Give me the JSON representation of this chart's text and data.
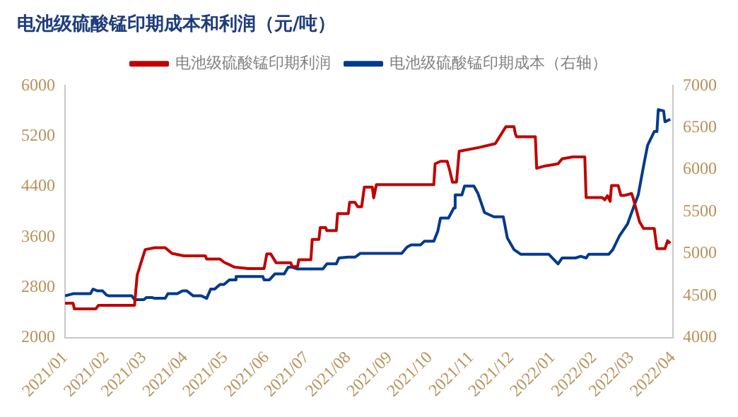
{
  "chart_data": {
    "type": "line",
    "title": "电池级硫酸锰印期成本和利润（元/吨）",
    "legend": "top",
    "grid": false,
    "xlim": [
      "2021-01-01",
      "2022-04-01"
    ],
    "xticks": [
      {
        "value": "2021-01",
        "label": "2021/01"
      },
      {
        "value": "2021-02",
        "label": "2021/02"
      },
      {
        "value": "2021-03",
        "label": "2021/03"
      },
      {
        "value": "2021-04",
        "label": "2021/04"
      },
      {
        "value": "2021-05",
        "label": "2021/05"
      },
      {
        "value": "2021-06",
        "label": "2021/06"
      },
      {
        "value": "2021-07",
        "label": "2021/07"
      },
      {
        "value": "2021-08",
        "label": "2021/08"
      },
      {
        "value": "2021-09",
        "label": "2021/09"
      },
      {
        "value": "2021-10",
        "label": "2021/10"
      },
      {
        "value": "2021-11",
        "label": "2021/11"
      },
      {
        "value": "2021-12",
        "label": "2021/12"
      },
      {
        "value": "2022-01",
        "label": "2022/01"
      },
      {
        "value": "2022-02",
        "label": "2022/02"
      },
      {
        "value": "2022-03",
        "label": "2022/03"
      },
      {
        "value": "2022-04",
        "label": "2022/04"
      }
    ],
    "ylim": [
      2000,
      6000
    ],
    "yticks": [
      2000,
      2800,
      3600,
      4400,
      5200,
      6000
    ],
    "y2lim": [
      4000,
      7000
    ],
    "y2ticks": [
      4000,
      4500,
      5000,
      5500,
      6000,
      6500,
      7000
    ],
    "series": [
      {
        "name": "电池级硫酸锰印期利润",
        "color": "#c00000",
        "x": [
          "2021-01-01",
          "2021-01-07",
          "2021-01-08",
          "2021-01-24",
          "2021-01-26",
          "2021-02-22",
          "2021-02-24",
          "2021-02-27",
          "2021-03-02",
          "2021-03-09",
          "2021-03-17",
          "2021-03-22",
          "2021-03-31",
          "2021-04-16",
          "2021-04-17",
          "2021-04-27",
          "2021-04-30",
          "2021-05-08",
          "2021-05-18",
          "2021-05-30",
          "2021-06-01",
          "2021-06-04",
          "2021-06-08",
          "2021-06-19",
          "2021-06-20",
          "2021-06-24",
          "2021-06-25",
          "2021-07-04",
          "2021-07-05",
          "2021-07-10",
          "2021-07-11",
          "2021-07-15",
          "2021-07-16",
          "2021-07-23",
          "2021-07-24",
          "2021-08-01",
          "2021-08-02",
          "2021-08-06",
          "2021-08-08",
          "2021-08-11",
          "2021-08-13",
          "2021-08-19",
          "2021-08-20",
          "2021-08-22",
          "2021-10-04",
          "2021-10-05",
          "2021-10-09",
          "2021-10-14",
          "2021-10-16",
          "2021-10-18",
          "2021-10-21",
          "2021-10-23",
          "2021-11-07",
          "2021-11-19",
          "2021-11-27",
          "2021-12-03",
          "2021-12-04",
          "2021-12-05",
          "2021-12-19",
          "2021-12-20",
          "2021-12-26",
          "2022-01-05",
          "2022-01-08",
          "2022-01-16",
          "2022-01-25",
          "2022-01-26",
          "2022-02-07",
          "2022-02-09",
          "2022-02-11",
          "2022-02-13",
          "2022-02-14",
          "2022-02-19",
          "2022-02-21",
          "2022-02-24",
          "2022-03-01",
          "2022-03-02",
          "2022-03-07",
          "2022-03-10",
          "2022-03-18",
          "2022-03-20",
          "2022-03-26",
          "2022-03-28",
          "2022-03-30"
        ],
        "values": [
          2550,
          2550,
          2460,
          2460,
          2515,
          2515,
          2995,
          3200,
          3400,
          3430,
          3430,
          3340,
          3300,
          3300,
          3250,
          3250,
          3200,
          3120,
          3100,
          3100,
          3330,
          3330,
          3190,
          3190,
          3130,
          3130,
          3240,
          3240,
          3560,
          3560,
          3750,
          3750,
          3700,
          3700,
          3970,
          3970,
          4150,
          4150,
          4080,
          4080,
          4390,
          4390,
          4220,
          4430,
          4430,
          4760,
          4800,
          4800,
          4650,
          4470,
          4470,
          4960,
          5020,
          5080,
          5350,
          5350,
          5240,
          5190,
          5190,
          4690,
          4725,
          4760,
          4840,
          4870,
          4870,
          4225,
          4225,
          4190,
          4255,
          4165,
          4415,
          4415,
          4260,
          4260,
          4290,
          4230,
          3840,
          3735,
          3735,
          3415,
          3415,
          3540,
          3500
        ]
      },
      {
        "name": "电池级硫酸锰印期成本（右轴）",
        "color": "#003a8c",
        "axis": "y2",
        "x": [
          "2021-01-01",
          "2021-01-07",
          "2021-01-20",
          "2021-01-22",
          "2021-01-25",
          "2021-01-29",
          "2021-02-01",
          "2021-02-03",
          "2021-02-20",
          "2021-02-22",
          "2021-03-01",
          "2021-03-03",
          "2021-03-07",
          "2021-03-09",
          "2021-03-17",
          "2021-03-19",
          "2021-03-26",
          "2021-03-30",
          "2021-04-02",
          "2021-04-07",
          "2021-04-13",
          "2021-04-17",
          "2021-04-20",
          "2021-04-23",
          "2021-04-27",
          "2021-04-30",
          "2021-05-04",
          "2021-05-08",
          "2021-05-09",
          "2021-05-29",
          "2021-05-30",
          "2021-06-03",
          "2021-06-07",
          "2021-06-14",
          "2021-06-17",
          "2021-06-20",
          "2021-06-24",
          "2021-07-13",
          "2021-07-16",
          "2021-07-23",
          "2021-07-25",
          "2021-08-01",
          "2021-08-06",
          "2021-08-10",
          "2021-09-10",
          "2021-09-14",
          "2021-09-17",
          "2021-09-24",
          "2021-09-27",
          "2021-10-04",
          "2021-10-07",
          "2021-10-09",
          "2021-10-15",
          "2021-10-19",
          "2021-10-20",
          "2021-10-25",
          "2021-10-27",
          "2021-11-03",
          "2021-11-06",
          "2021-11-11",
          "2021-11-18",
          "2021-11-25",
          "2021-11-28",
          "2021-12-03",
          "2021-12-08",
          "2021-12-29",
          "2022-01-05",
          "2022-01-08",
          "2022-01-18",
          "2022-01-22",
          "2022-01-26",
          "2022-01-28",
          "2022-02-12",
          "2022-02-15",
          "2022-02-20",
          "2022-02-26",
          "2022-03-03",
          "2022-03-06",
          "2022-03-10",
          "2022-03-13",
          "2022-03-18",
          "2022-03-20",
          "2022-03-21",
          "2022-03-25",
          "2022-03-26",
          "2022-03-30"
        ],
        "values": [
          4500,
          4525,
          4525,
          4580,
          4560,
          4560,
          4510,
          4500,
          4500,
          4455,
          4455,
          4480,
          4480,
          4470,
          4470,
          4525,
          4525,
          4560,
          4560,
          4500,
          4500,
          4470,
          4580,
          4580,
          4635,
          4635,
          4690,
          4690,
          4730,
          4730,
          4690,
          4690,
          4760,
          4760,
          4840,
          4840,
          4820,
          4820,
          4880,
          4880,
          4950,
          4960,
          4960,
          5005,
          5005,
          5080,
          5105,
          5105,
          5150,
          5150,
          5270,
          5425,
          5425,
          5545,
          5700,
          5700,
          5805,
          5805,
          5720,
          5490,
          5440,
          5440,
          5190,
          5050,
          4995,
          4995,
          4880,
          4950,
          4950,
          4970,
          4950,
          4995,
          4995,
          5050,
          5215,
          5355,
          5575,
          5700,
          6045,
          6290,
          6455,
          6455,
          6715,
          6700,
          6570,
          6600
        ]
      }
    ]
  }
}
